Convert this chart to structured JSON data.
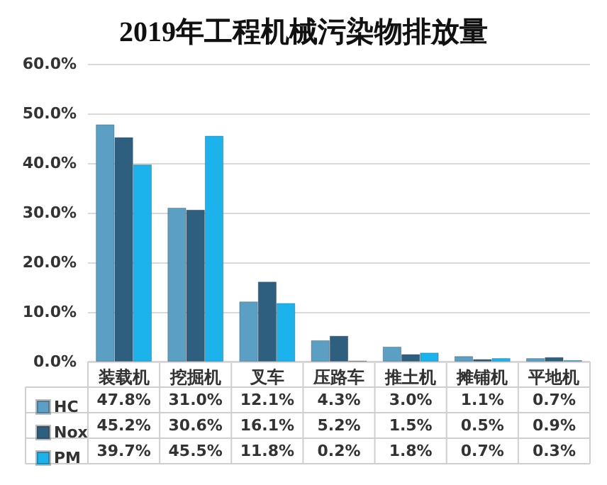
{
  "chart_data": {
    "type": "bar",
    "title": "2019年工程机械污染物排放量",
    "categories": [
      "装载机",
      "挖掘机",
      "叉车",
      "压路车",
      "推土机",
      "摊铺机",
      "平地机"
    ],
    "series": [
      {
        "name": "HC",
        "color": "#5b9fc4",
        "values": [
          47.8,
          31.0,
          12.1,
          4.3,
          3.0,
          1.1,
          0.7
        ],
        "value_labels": [
          "47.8%",
          "31.0%",
          "12.1%",
          "4.3%",
          "3.0%",
          "1.1%",
          "0.7%"
        ]
      },
      {
        "name": "Nox",
        "color": "#2f5f7f",
        "values": [
          45.2,
          30.6,
          16.1,
          5.2,
          1.5,
          0.5,
          0.9
        ],
        "value_labels": [
          "45.2%",
          "30.6%",
          "16.1%",
          "5.2%",
          "1.5%",
          "0.5%",
          "0.9%"
        ]
      },
      {
        "name": "PM",
        "color": "#1cb2ec",
        "values": [
          39.7,
          45.5,
          11.8,
          0.2,
          1.8,
          0.7,
          0.3
        ],
        "value_labels": [
          "39.7%",
          "45.5%",
          "11.8%",
          "0.2%",
          "1.8%",
          "0.7%",
          "0.3%"
        ]
      }
    ],
    "ylim": [
      0,
      60
    ],
    "yticks": [
      {
        "value": 0,
        "label": "0.0%"
      },
      {
        "value": 10,
        "label": "10.0%"
      },
      {
        "value": 20,
        "label": "20.0%"
      },
      {
        "value": 30,
        "label": "30.0%"
      },
      {
        "value": 40,
        "label": "40.0%"
      },
      {
        "value": 50,
        "label": "50.0%"
      },
      {
        "value": 60,
        "label": "60.0%"
      }
    ],
    "grid": "y",
    "legend": "bottom left"
  }
}
